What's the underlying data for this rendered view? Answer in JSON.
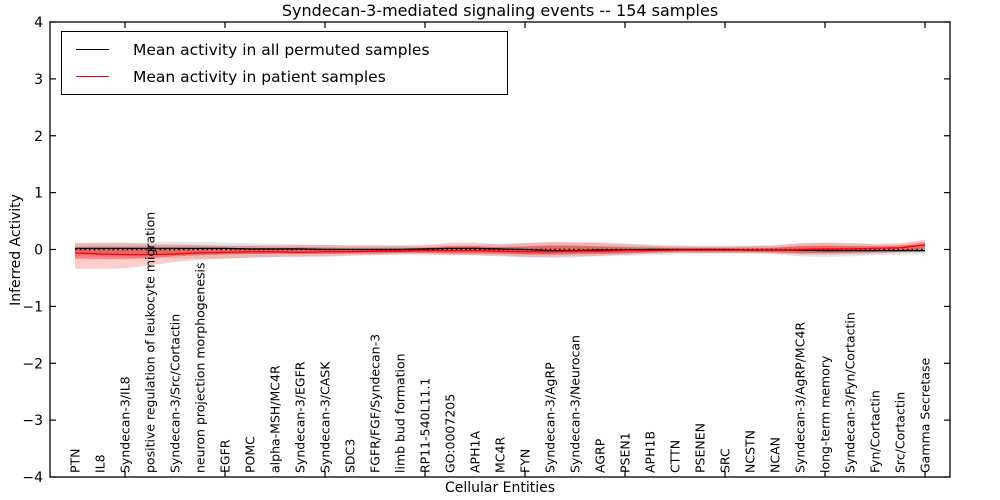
{
  "chart_data": {
    "type": "line",
    "title": "Syndecan-3-mediated signaling events -- 154 samples",
    "xlabel": "Cellular Entities",
    "ylabel": "Inferred Activity",
    "ylim": [
      -4,
      4
    ],
    "y_ticks": [
      -4,
      -3,
      -2,
      -1,
      0,
      1,
      2,
      3,
      4
    ],
    "y_tick_labels": [
      "-4",
      "-3",
      "-2",
      "-1",
      "0",
      "1",
      "2",
      "3",
      "4"
    ],
    "x_tick_indices": [
      2,
      6,
      10,
      14,
      18,
      22,
      26,
      30,
      34
    ],
    "grid": false,
    "legend_position": "upper left",
    "zero_reference_line": 0,
    "categories": [
      "PTN",
      "IL8",
      "Syndecan-3/IL8",
      "positive regulation of leukocyte migration",
      "Syndecan-3/Src/Cortactin",
      "neuron projection morphogenesis",
      "EGFR",
      "POMC",
      "alpha-MSH/MC4R",
      "Syndecan-3/EGFR",
      "Syndecan-3/CASK",
      "SDC3",
      "FGFR/FGF/Syndecan-3",
      "limb bud formation",
      "RP11-540L11.1",
      "GO:0007205",
      "APH1A",
      "MC4R",
      "FYN",
      "Syndecan-3/AgRP",
      "Syndecan-3/Neurocan",
      "AGRP",
      "PSEN1",
      "APH1B",
      "CTTN",
      "PSENEN",
      "SRC",
      "NCSTN",
      "NCAN",
      "Syndecan-3/AgRP/MC4R",
      "long-term memory",
      "Syndecan-3/Fyn/Cortactin",
      "Fyn/Cortactin",
      "Src/Cortactin",
      "Gamma Secretase"
    ],
    "series": [
      {
        "name": "Mean activity in all permuted samples",
        "color": "#000000",
        "band_color": "#000000",
        "band_outer_opacity": 0.1,
        "band_inner_opacity": 0.12,
        "values": [
          0.02,
          0.02,
          0.02,
          0.02,
          0.02,
          0.02,
          0.02,
          0.01,
          0.01,
          0.01,
          0.0,
          0.0,
          0.0,
          0.0,
          0.01,
          0.02,
          0.02,
          0.01,
          0.0,
          -0.02,
          -0.02,
          -0.01,
          -0.01,
          0.0,
          0.0,
          0.0,
          0.0,
          -0.01,
          -0.01,
          -0.01,
          -0.02,
          -0.02,
          -0.02,
          -0.02,
          -0.02
        ],
        "band_outer_upper": [
          0.1,
          0.11,
          0.12,
          0.13,
          0.14,
          0.13,
          0.12,
          0.11,
          0.1,
          0.09,
          0.08,
          0.08,
          0.08,
          0.07,
          0.07,
          0.08,
          0.09,
          0.1,
          0.12,
          0.13,
          0.12,
          0.11,
          0.1,
          0.09,
          0.08,
          0.07,
          0.07,
          0.07,
          0.08,
          0.11,
          0.12,
          0.11,
          0.09,
          0.08,
          0.08
        ],
        "band_outer_lower": [
          -0.12,
          -0.13,
          -0.14,
          -0.15,
          -0.16,
          -0.16,
          -0.16,
          -0.15,
          -0.13,
          -0.12,
          -0.11,
          -0.1,
          -0.09,
          -0.08,
          -0.08,
          -0.09,
          -0.1,
          -0.12,
          -0.14,
          -0.15,
          -0.14,
          -0.12,
          -0.11,
          -0.1,
          -0.09,
          -0.08,
          -0.08,
          -0.08,
          -0.09,
          -0.12,
          -0.13,
          -0.12,
          -0.1,
          -0.09,
          -0.08
        ],
        "band_inner_upper": [
          0.05,
          0.06,
          0.06,
          0.07,
          0.07,
          0.07,
          0.06,
          0.06,
          0.05,
          0.05,
          0.04,
          0.04,
          0.04,
          0.04,
          0.04,
          0.04,
          0.05,
          0.05,
          0.06,
          0.07,
          0.06,
          0.06,
          0.05,
          0.05,
          0.04,
          0.04,
          0.04,
          0.04,
          0.04,
          0.06,
          0.06,
          0.06,
          0.05,
          0.04,
          0.04
        ],
        "band_inner_lower": [
          -0.07,
          -0.07,
          -0.08,
          -0.08,
          -0.09,
          -0.09,
          -0.08,
          -0.08,
          -0.07,
          -0.07,
          -0.06,
          -0.06,
          -0.05,
          -0.05,
          -0.05,
          -0.05,
          -0.06,
          -0.06,
          -0.08,
          -0.08,
          -0.08,
          -0.07,
          -0.06,
          -0.06,
          -0.05,
          -0.05,
          -0.05,
          -0.05,
          -0.05,
          -0.07,
          -0.07,
          -0.07,
          -0.06,
          -0.05,
          -0.05
        ]
      },
      {
        "name": "Mean activity in patient samples",
        "color": "#ff0000",
        "band_color": "#ff0000",
        "band_outer_opacity": 0.2,
        "band_inner_opacity": 0.35,
        "values": [
          -0.06,
          -0.08,
          -0.09,
          -0.09,
          -0.08,
          -0.06,
          -0.05,
          -0.04,
          -0.04,
          -0.05,
          -0.04,
          -0.04,
          -0.03,
          -0.03,
          -0.02,
          -0.02,
          -0.02,
          -0.03,
          -0.04,
          -0.04,
          -0.03,
          -0.03,
          -0.02,
          -0.02,
          -0.01,
          -0.01,
          -0.01,
          -0.01,
          -0.01,
          0.0,
          0.01,
          0.01,
          0.02,
          0.03,
          0.08
        ],
        "band_outer_upper": [
          0.12,
          0.12,
          0.11,
          0.1,
          0.09,
          0.08,
          0.07,
          0.07,
          0.07,
          0.08,
          0.08,
          0.07,
          0.07,
          0.07,
          0.08,
          0.12,
          0.12,
          0.09,
          0.11,
          0.13,
          0.13,
          0.12,
          0.1,
          0.07,
          0.06,
          0.05,
          0.05,
          0.06,
          0.07,
          0.11,
          0.12,
          0.11,
          0.1,
          0.11,
          0.17
        ],
        "band_outer_lower": [
          -0.34,
          -0.34,
          -0.33,
          -0.28,
          -0.22,
          -0.18,
          -0.16,
          -0.14,
          -0.13,
          -0.13,
          -0.13,
          -0.11,
          -0.1,
          -0.09,
          -0.09,
          -0.1,
          -0.1,
          -0.11,
          -0.13,
          -0.13,
          -0.12,
          -0.11,
          -0.09,
          -0.07,
          -0.06,
          -0.06,
          -0.06,
          -0.06,
          -0.07,
          -0.09,
          -0.09,
          -0.08,
          -0.07,
          -0.05,
          -0.03
        ],
        "band_inner_upper": [
          0.03,
          0.02,
          0.02,
          0.02,
          0.02,
          0.02,
          0.02,
          0.02,
          0.02,
          0.03,
          0.03,
          0.02,
          0.02,
          0.02,
          0.03,
          0.06,
          0.06,
          0.04,
          0.05,
          0.07,
          0.07,
          0.05,
          0.04,
          0.03,
          0.02,
          0.02,
          0.02,
          0.02,
          0.03,
          0.06,
          0.07,
          0.06,
          0.06,
          0.07,
          0.13
        ],
        "band_inner_lower": [
          -0.16,
          -0.17,
          -0.17,
          -0.15,
          -0.12,
          -0.1,
          -0.09,
          -0.08,
          -0.08,
          -0.08,
          -0.08,
          -0.07,
          -0.07,
          -0.06,
          -0.06,
          -0.07,
          -0.07,
          -0.08,
          -0.09,
          -0.09,
          -0.08,
          -0.08,
          -0.07,
          -0.05,
          -0.04,
          -0.04,
          -0.04,
          -0.04,
          -0.05,
          -0.06,
          -0.06,
          -0.05,
          -0.04,
          -0.03,
          0.02
        ]
      }
    ]
  }
}
